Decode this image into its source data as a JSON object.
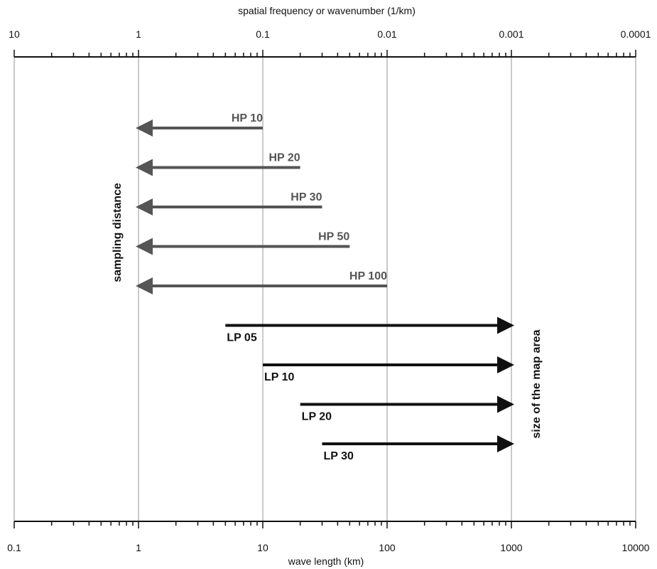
{
  "chart_data": {
    "type": "line",
    "x_scale": "log",
    "xlim": [
      0.1,
      10000
    ],
    "grid": true,
    "top_axis": {
      "title": "spatial frequency or wavenumber (1/km)",
      "ticks": [
        10,
        1,
        0.1,
        0.01,
        0.001,
        0.0001
      ],
      "tick_labels": [
        "10",
        "1",
        "0.1",
        "0.01",
        "0.001",
        "0.0001"
      ]
    },
    "bottom_axis": {
      "title": "wave length (km)",
      "ticks": [
        0.1,
        1,
        10,
        100,
        1000,
        10000
      ],
      "tick_labels": [
        "0.1",
        "1",
        "10",
        "100",
        "1000",
        "10000"
      ]
    },
    "annotations": [
      {
        "text": "sampling distance",
        "x": 1
      },
      {
        "text": "size of the map area",
        "x": 1000
      }
    ],
    "series": [
      {
        "name": "HP 10",
        "x": [
          10,
          1
        ],
        "direction": "toward-short-wavelengths",
        "color": "#555555"
      },
      {
        "name": "HP 20",
        "x": [
          20,
          1
        ],
        "direction": "toward-short-wavelengths",
        "color": "#555555"
      },
      {
        "name": "HP 30",
        "x": [
          30,
          1
        ],
        "direction": "toward-short-wavelengths",
        "color": "#555555"
      },
      {
        "name": "HP 50",
        "x": [
          50,
          1
        ],
        "direction": "toward-short-wavelengths",
        "color": "#555555"
      },
      {
        "name": "HP 100",
        "x": [
          100,
          1
        ],
        "direction": "toward-short-wavelengths",
        "color": "#555555"
      },
      {
        "name": "LP 05",
        "x": [
          5,
          1000
        ],
        "direction": "toward-long-wavelengths",
        "color": "#111111"
      },
      {
        "name": "LP 10",
        "x": [
          10,
          1000
        ],
        "direction": "toward-long-wavelengths",
        "color": "#111111"
      },
      {
        "name": "LP 20",
        "x": [
          20,
          1000
        ],
        "direction": "toward-long-wavelengths",
        "color": "#111111"
      },
      {
        "name": "LP 30",
        "x": [
          30,
          1000
        ],
        "direction": "toward-long-wavelengths",
        "color": "#111111"
      }
    ]
  }
}
